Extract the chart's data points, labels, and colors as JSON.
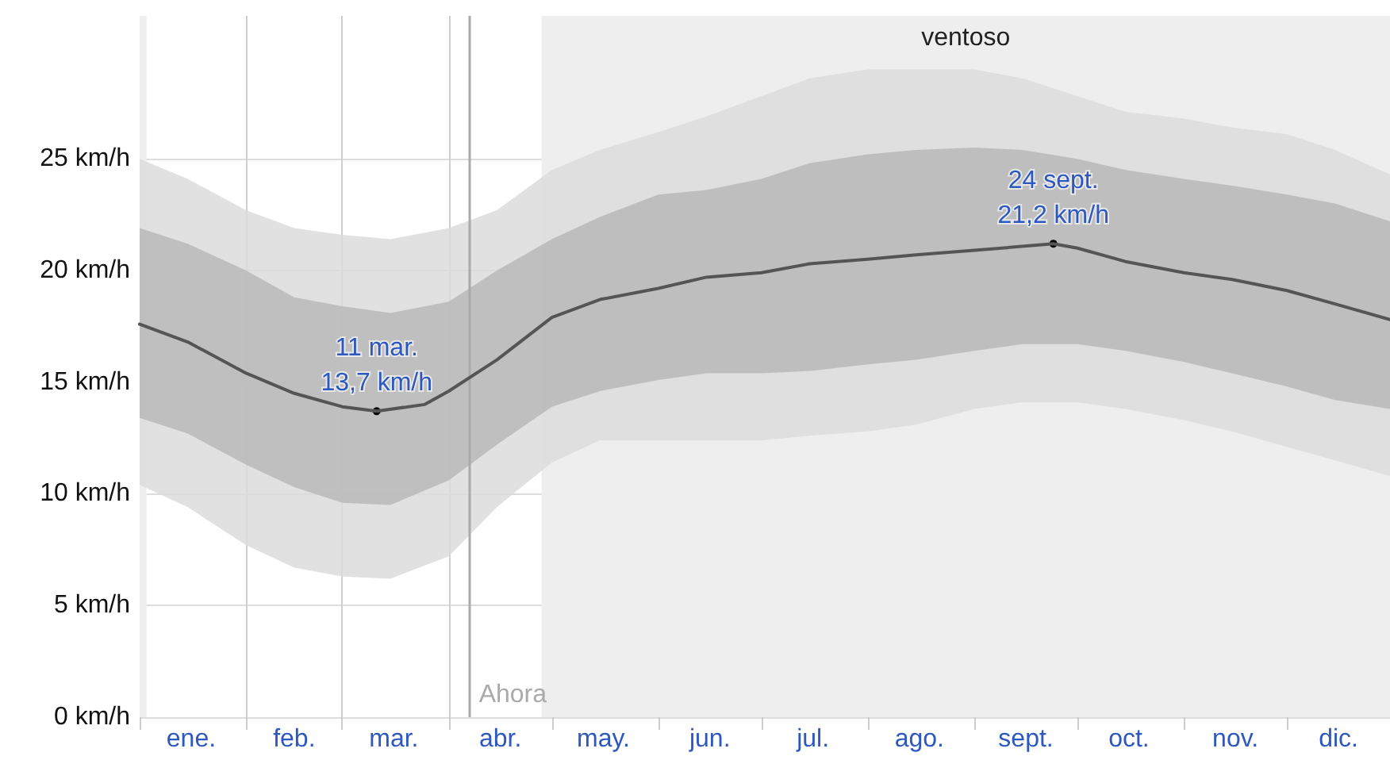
{
  "chart_data": {
    "type": "line",
    "xlim": [
      "--01-01",
      "--12-31"
    ],
    "xticks": [
      {
        "value": "--01-01",
        "label": null
      },
      {
        "value": "--01-16",
        "label": "ene."
      },
      {
        "value": "--02-01",
        "label": null
      },
      {
        "value": "--02-15",
        "label": "feb."
      },
      {
        "value": "--03-01",
        "label": null
      },
      {
        "value": "--03-16",
        "label": "mar."
      },
      {
        "value": "--04-01",
        "label": null
      },
      {
        "value": "--04-16",
        "label": "abr."
      },
      {
        "value": "--05-01",
        "label": null
      },
      {
        "value": "--05-16",
        "label": "may."
      },
      {
        "value": "--06-01",
        "label": null
      },
      {
        "value": "--06-16",
        "label": "jun."
      },
      {
        "value": "--07-01",
        "label": null
      },
      {
        "value": "--07-16",
        "label": "jul."
      },
      {
        "value": "--08-01",
        "label": null
      },
      {
        "value": "--08-16",
        "label": "ago."
      },
      {
        "value": "--09-01",
        "label": null
      },
      {
        "value": "--09-16",
        "label": "sept."
      },
      {
        "value": "--10-01",
        "label": null
      },
      {
        "value": "--10-16",
        "label": "oct."
      },
      {
        "value": "--11-01",
        "label": null
      },
      {
        "value": "--11-16",
        "label": "nov."
      },
      {
        "value": "--12-01",
        "label": null
      },
      {
        "value": "--12-16",
        "label": "dic."
      }
    ],
    "ylim": [
      0,
      31.4
    ],
    "yticks": [
      {
        "value": 0,
        "label": "0 km/h"
      },
      {
        "value": 5,
        "label": "5 km/h"
      },
      {
        "value": 10,
        "label": "10 km/h"
      },
      {
        "value": 15,
        "label": "15 km/h"
      },
      {
        "value": 20,
        "label": "20 km/h"
      },
      {
        "value": 25,
        "label": "25 km/h"
      }
    ],
    "grid": true,
    "series": [
      {
        "type": "area",
        "color": "#dcdcdc",
        "x": [
          "--01-01",
          "--01-15",
          "--02-01",
          "--02-15",
          "--03-01",
          "--03-15",
          "--04-01",
          "--04-15",
          "--05-01",
          "--05-15",
          "--06-01",
          "--06-15",
          "--07-01",
          "--07-15",
          "--08-01",
          "--08-15",
          "--09-01",
          "--09-15",
          "--10-01",
          "--10-15",
          "--11-01",
          "--11-15",
          "--12-01",
          "--12-15",
          "--12-31"
        ],
        "values": [
          null,
          null,
          null,
          null,
          null,
          null,
          null,
          null,
          null,
          null,
          null,
          null,
          null,
          null,
          null,
          null,
          null,
          null,
          null,
          null,
          null,
          null,
          null,
          null,
          null
        ],
        "lower": [
          10.4,
          9.4,
          7.7,
          6.7,
          6.3,
          6.2,
          7.2,
          9.4,
          11.4,
          12.4,
          12.4,
          12.4,
          12.4,
          12.6,
          12.8,
          13.1,
          13.8,
          14.1,
          14.1,
          13.8,
          13.3,
          12.8,
          12.1,
          11.5,
          10.8
        ],
        "upper": [
          25.0,
          24.1,
          22.7,
          21.9,
          21.6,
          21.4,
          21.9,
          22.7,
          24.5,
          25.4,
          26.2,
          26.9,
          27.8,
          28.6,
          29.0,
          29.0,
          29.0,
          28.6,
          27.8,
          27.1,
          26.8,
          26.4,
          26.1,
          25.4,
          24.3
        ]
      },
      {
        "type": "area",
        "color": "#b9b9b9",
        "x": [
          "--01-01",
          "--01-15",
          "--02-01",
          "--02-15",
          "--03-01",
          "--03-15",
          "--04-01",
          "--04-15",
          "--05-01",
          "--05-15",
          "--06-01",
          "--06-15",
          "--07-01",
          "--07-15",
          "--08-01",
          "--08-15",
          "--09-01",
          "--09-15",
          "--10-01",
          "--10-15",
          "--11-01",
          "--11-15",
          "--12-01",
          "--12-15",
          "--12-31"
        ],
        "values": [
          null,
          null,
          null,
          null,
          null,
          null,
          null,
          null,
          null,
          null,
          null,
          null,
          null,
          null,
          null,
          null,
          null,
          null,
          null,
          null,
          null,
          null,
          null,
          null,
          null
        ],
        "lower": [
          13.4,
          12.7,
          11.3,
          10.3,
          9.6,
          9.5,
          10.6,
          12.2,
          13.9,
          14.6,
          15.1,
          15.4,
          15.4,
          15.5,
          15.8,
          16.0,
          16.4,
          16.7,
          16.7,
          16.4,
          15.9,
          15.4,
          14.8,
          14.2,
          13.8
        ],
        "upper": [
          21.9,
          21.2,
          20.0,
          18.8,
          18.4,
          18.1,
          18.6,
          20.0,
          21.4,
          22.4,
          23.4,
          23.6,
          24.1,
          24.8,
          25.2,
          25.4,
          25.5,
          25.4,
          25.0,
          24.5,
          24.1,
          23.8,
          23.4,
          23.0,
          22.2
        ]
      },
      {
        "color": "#555555",
        "x": [
          "--01-01",
          "--01-15",
          "--02-01",
          "--02-15",
          "--03-01",
          "--03-11",
          "--03-25",
          "--04-01",
          "--04-15",
          "--05-01",
          "--05-15",
          "--06-01",
          "--06-15",
          "--07-01",
          "--07-15",
          "--08-01",
          "--08-15",
          "--09-01",
          "--09-24",
          "--10-01",
          "--10-15",
          "--11-01",
          "--11-15",
          "--12-01",
          "--12-15",
          "--12-31"
        ],
        "values": [
          17.6,
          16.8,
          15.4,
          14.5,
          13.9,
          13.7,
          14.0,
          14.6,
          16.0,
          17.9,
          18.7,
          19.2,
          19.7,
          19.9,
          20.3,
          20.5,
          20.7,
          20.9,
          21.2,
          21.0,
          20.4,
          19.9,
          19.6,
          19.1,
          18.5,
          17.8
        ]
      }
    ],
    "marker": "none",
    "line_style": "solid",
    "bands": [
      {
        "axis": "x",
        "from": "--04-28",
        "to": "--12-31",
        "label": "ventoso",
        "color": "#eeeeee"
      },
      {
        "axis": "x",
        "from": "--01-01",
        "to": "--01-03",
        "label": null,
        "color": "#eeeeee"
      }
    ],
    "ref_lines": [
      {
        "axis": "x",
        "value": "--04-07",
        "label": "Ahora",
        "color": "#aaaaaa"
      }
    ],
    "annotations": [
      {
        "text": "11 mar.\n13,7 km/h",
        "x": "--03-11",
        "y": 13.7
      },
      {
        "text": "24 sept.\n21,2 km/h",
        "x": "--09-24",
        "y": 21.2
      }
    ]
  }
}
